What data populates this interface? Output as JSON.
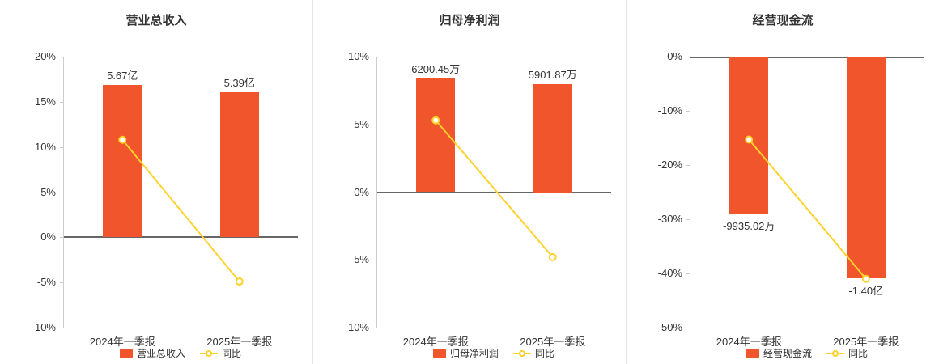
{
  "colors": {
    "bar": "#f0552b",
    "line": "#ffd12b",
    "title_text": "#333333",
    "axis_text": "#333333",
    "zero_line": "#666666",
    "axis_line": "#cccccc",
    "divider": "#e4e4e4"
  },
  "chart_data": [
    {
      "type": "bar",
      "title": "营业总收入",
      "categories": [
        "2024年一季报",
        "2025年一季报"
      ],
      "bar_series": {
        "name": "营业总收入",
        "display_values": [
          "5.67亿",
          "5.39亿"
        ],
        "plot_values": [
          16.9,
          16.1
        ]
      },
      "line_series": {
        "name": "同比",
        "values": [
          10.8,
          -4.9
        ]
      },
      "ylim": [
        -10,
        20
      ],
      "yticks": [
        20,
        15,
        10,
        5,
        0,
        -5,
        -10
      ],
      "grid": false,
      "legend_position": "bottom"
    },
    {
      "type": "bar",
      "title": "归母净利润",
      "categories": [
        "2024年一季报",
        "2025年一季报"
      ],
      "bar_series": {
        "name": "归母净利润",
        "display_values": [
          "6200.45万",
          "5901.87万"
        ],
        "plot_values": [
          8.4,
          8.0
        ]
      },
      "line_series": {
        "name": "同比",
        "values": [
          5.3,
          -4.8
        ]
      },
      "ylim": [
        -10,
        10
      ],
      "yticks": [
        10,
        5,
        0,
        -5,
        -10
      ],
      "grid": false,
      "legend_position": "bottom"
    },
    {
      "type": "bar",
      "title": "经营现金流",
      "categories": [
        "2024年一季报",
        "2025年一季报"
      ],
      "bar_series": {
        "name": "经营现金流",
        "display_values": [
          "-9935.02万",
          "-1.40亿"
        ],
        "plot_values": [
          -29,
          -40.9
        ]
      },
      "line_series": {
        "name": "同比",
        "values": [
          -15.3,
          -41.0
        ]
      },
      "ylim": [
        -50,
        0
      ],
      "yticks": [
        0,
        -10,
        -20,
        -30,
        -40,
        -50
      ],
      "grid": false,
      "legend_position": "bottom"
    }
  ]
}
